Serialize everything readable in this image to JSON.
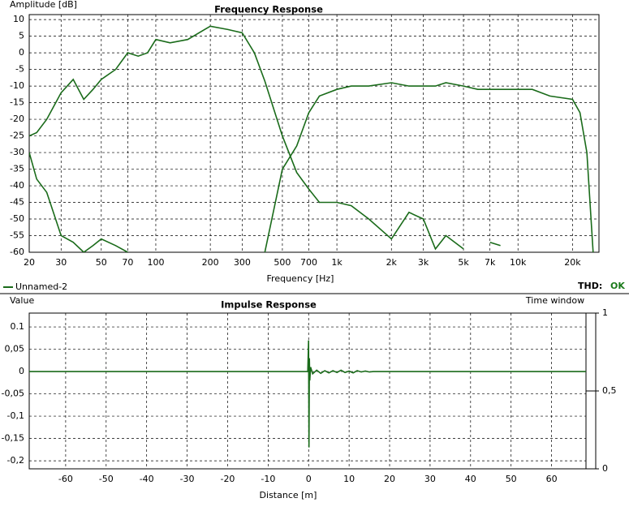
{
  "chart_data": [
    {
      "type": "line",
      "title": "Frequency Response",
      "ylabel": "Amplitude [dB]",
      "xlabel": "Frequency [Hz]",
      "xlog": true,
      "grid": true,
      "xlim": [
        20,
        28000
      ],
      "ylim": [
        -60,
        11.5
      ],
      "xticks": [
        20,
        30,
        50,
        70,
        100,
        200,
        300,
        500,
        700,
        {
          "value": 1000,
          "label": "1k"
        },
        {
          "value": 2000,
          "label": "2k"
        },
        {
          "value": 3000,
          "label": "3k"
        },
        {
          "value": 5000,
          "label": "5k"
        },
        {
          "value": 7000,
          "label": "7k"
        },
        {
          "value": 10000,
          "label": "10k"
        },
        {
          "value": 20000,
          "label": "20k"
        }
      ],
      "yticks": [
        10,
        5,
        0,
        -5,
        -10,
        -15,
        -20,
        -25,
        -30,
        -35,
        -40,
        -45,
        -50,
        -55,
        -60
      ],
      "x": [
        20,
        22,
        25,
        30,
        35,
        40,
        45,
        50,
        60,
        70,
        80,
        90,
        100,
        120,
        150,
        200,
        250,
        300,
        350,
        400,
        500,
        600,
        700,
        800,
        1000,
        1200,
        1500,
        2000,
        2500,
        3000,
        3500,
        4000,
        5000,
        6000,
        7000,
        8000,
        10000,
        12000,
        15000,
        20000,
        22000,
        24000,
        26000
      ],
      "series": [
        {
          "name": "Unnamed-2",
          "color": "#1a6b1a",
          "values": [
            -25,
            -24,
            -20,
            -12,
            -8,
            -14,
            -11,
            -8,
            -5,
            0,
            -1,
            0,
            4,
            3,
            4,
            8,
            7,
            6,
            0,
            -8.5,
            -25,
            -36,
            -41,
            -45,
            -45,
            -46,
            -50,
            -56,
            -48,
            -50,
            -59,
            -55,
            -59,
            null,
            -57,
            -58,
            null,
            null,
            null,
            null,
            null,
            null,
            null
          ]
        },
        {
          "color": "#1a6b1a",
          "values": [
            -30,
            -38,
            -42,
            -55,
            -57,
            -60,
            -58,
            -56,
            -58,
            -60,
            null,
            null,
            null,
            null,
            null,
            null,
            null,
            null,
            null,
            -60,
            -35,
            -28,
            -18,
            -13,
            -11,
            -10,
            -10,
            -9,
            -10,
            -10,
            -10,
            -9,
            -10,
            -11,
            -11,
            -11,
            -11,
            -11,
            -13,
            -14,
            -18,
            -30,
            -60
          ]
        }
      ]
    },
    {
      "type": "line",
      "title": "Impulse Response",
      "ylabel": "Value",
      "xlabel": "Distance [m]",
      "y2label": "Time window",
      "grid": true,
      "xlim": [
        -69,
        68.5
      ],
      "ylim": [
        -0.218,
        0.131
      ],
      "y2lim": [
        0,
        1
      ],
      "xticks": [
        -60,
        -50,
        -40,
        -30,
        -20,
        -10,
        0,
        10,
        20,
        30,
        40,
        50,
        60
      ],
      "yticks": [
        0.1,
        {
          "value": 0.05,
          "label": "0,05"
        },
        0,
        {
          "value": -0.05,
          "label": "-0,05"
        },
        {
          "value": -0.1,
          "label": "-0,1"
        },
        {
          "value": -0.15,
          "label": "-0,15"
        },
        {
          "value": -0.2,
          "label": "-0,2"
        }
      ],
      "y2ticks": [
        0,
        {
          "value": 0.5,
          "label": "0,5"
        },
        1
      ],
      "x": [
        -69,
        -0.2,
        0,
        0.1,
        0.2,
        0.3,
        0.5,
        1,
        2,
        3,
        4,
        5,
        6,
        7,
        8,
        9,
        10,
        11,
        12,
        13,
        14,
        15,
        16,
        68.5
      ],
      "series": [
        {
          "color": "#1a6b1a",
          "values": [
            0,
            0,
            0.07,
            -0.17,
            0.03,
            -0.02,
            0.01,
            -0.005,
            0.003,
            -0.004,
            0.002,
            -0.003,
            0.002,
            -0.002,
            0.003,
            -0.002,
            0.001,
            -0.003,
            0.002,
            -0.001,
            0.001,
            -0.001,
            0,
            0
          ]
        }
      ]
    }
  ],
  "status": {
    "thd_label": "THD:",
    "thd_value": "OK"
  }
}
